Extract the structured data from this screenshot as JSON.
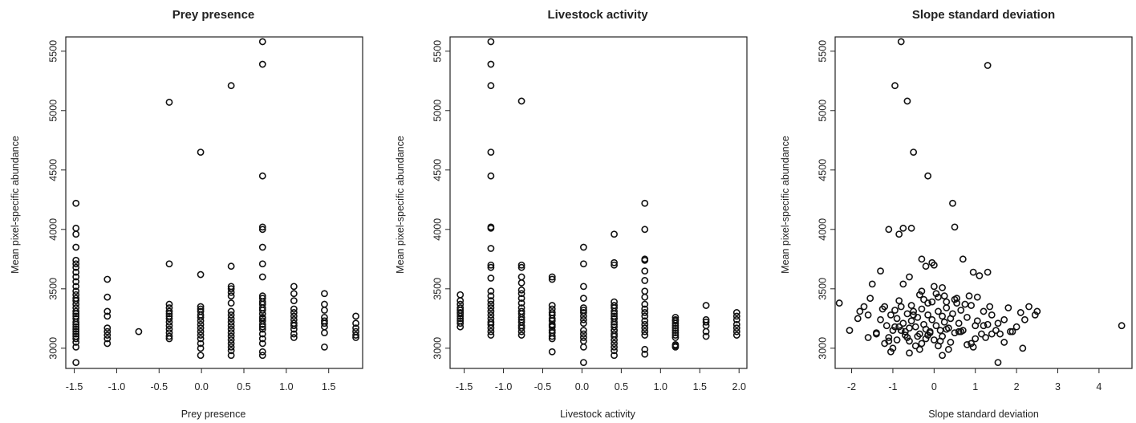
{
  "chart_data": [
    {
      "type": "scatter",
      "title": "Prey presence",
      "xlabel": "Prey presence",
      "ylabel": "Mean pixel-specific abundance",
      "xlim": [
        -1.6,
        1.9
      ],
      "ylim": [
        2830,
        5620
      ],
      "xticks": [
        -1.5,
        -1.0,
        -0.5,
        0.0,
        0.5,
        1.0,
        1.5
      ],
      "xtick_labels": [
        "-1.5",
        "-1.0",
        "-0.5",
        "0.0",
        "0.5",
        "1.0",
        "1.5"
      ],
      "yticks": [
        3000,
        3500,
        4000,
        4500,
        5000,
        5500
      ],
      "ytick_labels": [
        "3000",
        "3500",
        "4000",
        "4500",
        "5000",
        "5500"
      ],
      "grid": false,
      "x": [
        -1.48,
        -1.48,
        -1.48,
        -1.48,
        -1.48,
        -1.48,
        -1.48,
        -1.48,
        -1.48,
        -1.48,
        -1.48,
        -1.48,
        -1.48,
        -1.48,
        -1.48,
        -1.48,
        -1.48,
        -1.48,
        -1.48,
        -1.48,
        -1.48,
        -1.48,
        -1.48,
        -1.48,
        -1.48,
        -1.48,
        -1.48,
        -1.48,
        -1.48,
        -1.48,
        -1.48,
        -1.48,
        -1.11,
        -1.11,
        -1.11,
        -1.11,
        -1.11,
        -1.11,
        -1.11,
        -1.11,
        -1.11,
        -0.74,
        -0.38,
        -0.38,
        -0.38,
        -0.38,
        -0.38,
        -0.38,
        -0.38,
        -0.38,
        -0.38,
        -0.38,
        -0.38,
        -0.38,
        -0.38,
        -0.38,
        -0.01,
        -0.01,
        -0.01,
        -0.01,
        -0.01,
        -0.01,
        -0.01,
        -0.01,
        -0.01,
        -0.01,
        -0.01,
        -0.01,
        -0.01,
        -0.01,
        -0.01,
        -0.01,
        0.35,
        0.35,
        0.35,
        0.35,
        0.35,
        0.35,
        0.35,
        0.35,
        0.35,
        0.35,
        0.35,
        0.35,
        0.35,
        0.35,
        0.35,
        0.35,
        0.35,
        0.35,
        0.35,
        0.35,
        0.72,
        0.72,
        0.72,
        0.72,
        0.72,
        0.72,
        0.72,
        0.72,
        0.72,
        0.72,
        0.72,
        0.72,
        0.72,
        0.72,
        0.72,
        0.72,
        0.72,
        0.72,
        0.72,
        0.72,
        0.72,
        0.72,
        0.72,
        0.72,
        0.72,
        0.72,
        1.09,
        1.09,
        1.09,
        1.09,
        1.09,
        1.09,
        1.09,
        1.09,
        1.09,
        1.09,
        1.09,
        1.09,
        1.45,
        1.45,
        1.45,
        1.45,
        1.45,
        1.45,
        1.45,
        1.45,
        1.45,
        1.82,
        1.82,
        1.82,
        1.82,
        1.82,
        1.82
      ],
      "y": [
        2880,
        3010,
        3050,
        3080,
        3100,
        3120,
        3140,
        3160,
        3180,
        3200,
        3220,
        3250,
        3270,
        3290,
        3310,
        3340,
        3370,
        3400,
        3420,
        3450,
        3480,
        3520,
        3560,
        3600,
        3640,
        3680,
        3710,
        3740,
        3850,
        3960,
        4010,
        4220,
        3040,
        3080,
        3110,
        3140,
        3170,
        3270,
        3310,
        3430,
        3580,
        3140,
        3080,
        3100,
        3130,
        3160,
        3190,
        3220,
        3250,
        3270,
        3290,
        3310,
        3340,
        3370,
        3710,
        5070,
        2940,
        3000,
        3040,
        3080,
        3110,
        3140,
        3170,
        3200,
        3230,
        3260,
        3280,
        3310,
        3330,
        3350,
        3620,
        4650,
        2940,
        2980,
        3010,
        3040,
        3070,
        3100,
        3130,
        3160,
        3190,
        3220,
        3250,
        3280,
        3310,
        3380,
        3440,
        3470,
        3500,
        3520,
        3690,
        5210,
        2940,
        2970,
        3040,
        3080,
        3120,
        3160,
        3200,
        3230,
        3260,
        3290,
        3320,
        3340,
        3370,
        3390,
        3420,
        3440,
        3600,
        3710,
        3850,
        4000,
        4020,
        4450,
        5390,
        5580,
        3180,
        3250,
        3090,
        3120,
        3160,
        3190,
        3210,
        3240,
        3270,
        3300,
        3330,
        3400,
        3460,
        3520,
        3010,
        3130,
        3180,
        3210,
        3230,
        3260,
        3320,
        3370,
        3460,
        3090,
        3110,
        3140,
        3170,
        3210,
        3270
      ]
    },
    {
      "type": "scatter",
      "title": "Livestock activity",
      "xlabel": "Livestock activity",
      "ylabel": "Mean pixel-specific abundance",
      "xlim": [
        -1.68,
        2.1
      ],
      "ylim": [
        2830,
        5620
      ],
      "xticks": [
        -1.5,
        -1.0,
        -0.5,
        0.0,
        0.5,
        1.0,
        1.5,
        2.0
      ],
      "xtick_labels": [
        "-1.5",
        "-1.0",
        "-0.5",
        "0.0",
        "0.5",
        "1.0",
        "1.5",
        "2.0"
      ],
      "yticks": [
        3000,
        3500,
        4000,
        4500,
        5000,
        5500
      ],
      "ytick_labels": [
        "3000",
        "3500",
        "4000",
        "4500",
        "5000",
        "5500"
      ],
      "grid": false,
      "x": [
        -1.55,
        -1.55,
        -1.55,
        -1.55,
        -1.55,
        -1.55,
        -1.55,
        -1.55,
        -1.55,
        -1.55,
        -1.55,
        -1.55,
        -1.16,
        -1.16,
        -1.16,
        -1.16,
        -1.16,
        -1.16,
        -1.16,
        -1.16,
        -1.16,
        -1.16,
        -1.16,
        -1.16,
        -1.16,
        -1.16,
        -1.16,
        -1.16,
        -1.16,
        -1.16,
        -1.16,
        -1.16,
        -1.16,
        -1.16,
        -1.16,
        -1.16,
        -0.77,
        -0.77,
        -0.77,
        -0.77,
        -0.77,
        -0.77,
        -0.77,
        -0.77,
        -0.77,
        -0.77,
        -0.77,
        -0.77,
        -0.77,
        -0.77,
        -0.77,
        -0.77,
        -0.77,
        -0.77,
        -0.77,
        -0.38,
        -0.38,
        -0.38,
        -0.38,
        -0.38,
        -0.38,
        -0.38,
        -0.38,
        -0.38,
        -0.38,
        -0.38,
        -0.38,
        -0.38,
        -0.38,
        -0.38,
        -0.38,
        0.02,
        0.02,
        0.02,
        0.02,
        0.02,
        0.02,
        0.02,
        0.02,
        0.02,
        0.02,
        0.02,
        0.02,
        0.02,
        0.02,
        0.02,
        0.02,
        0.41,
        0.41,
        0.41,
        0.41,
        0.41,
        0.41,
        0.41,
        0.41,
        0.41,
        0.41,
        0.41,
        0.41,
        0.41,
        0.41,
        0.41,
        0.41,
        0.41,
        0.41,
        0.41,
        0.41,
        0.41,
        0.41,
        0.41,
        0.8,
        0.8,
        0.8,
        0.8,
        0.8,
        0.8,
        0.8,
        0.8,
        0.8,
        0.8,
        0.8,
        0.8,
        0.8,
        0.8,
        0.8,
        0.8,
        0.8,
        0.8,
        0.8,
        1.19,
        1.19,
        1.19,
        1.19,
        1.19,
        1.19,
        1.19,
        1.19,
        1.19,
        1.19,
        1.19,
        1.19,
        1.19,
        1.58,
        1.58,
        1.58,
        1.58,
        1.58,
        1.58,
        1.97,
        1.97,
        1.97,
        1.97,
        1.97,
        1.97,
        1.97
      ],
      "y": [
        3180,
        3210,
        3230,
        3250,
        3270,
        3290,
        3300,
        3320,
        3340,
        3370,
        3400,
        3450,
        3110,
        3140,
        3170,
        3200,
        3220,
        3250,
        3280,
        3310,
        3340,
        3370,
        3400,
        3440,
        3480,
        3590,
        3680,
        3700,
        3840,
        4010,
        4020,
        4450,
        4650,
        5210,
        5390,
        5580,
        3110,
        3140,
        3170,
        3190,
        3220,
        3240,
        3260,
        3290,
        3310,
        3340,
        3380,
        3420,
        3460,
        3490,
        3550,
        3600,
        3680,
        3700,
        5080,
        2970,
        3080,
        3100,
        3130,
        3150,
        3180,
        3200,
        3230,
        3250,
        3280,
        3300,
        3330,
        3360,
        3580,
        3600,
        3190,
        2880,
        3010,
        3060,
        3090,
        3120,
        3150,
        3210,
        3240,
        3270,
        3300,
        3340,
        3420,
        3520,
        3710,
        3850,
        3320,
        2940,
        2980,
        3010,
        3040,
        3070,
        3100,
        3120,
        3150,
        3180,
        3200,
        3220,
        3250,
        3270,
        3290,
        3310,
        3340,
        3360,
        3390,
        3700,
        3720,
        3960,
        3250,
        3150,
        2950,
        2990,
        3110,
        3140,
        3170,
        3200,
        3230,
        3270,
        3300,
        3330,
        3370,
        3430,
        3480,
        3570,
        3650,
        3750,
        3740,
        4000,
        4220,
        3010,
        3030,
        3090,
        3110,
        3130,
        3150,
        3170,
        3190,
        3210,
        3230,
        3240,
        3260,
        3020,
        3100,
        3140,
        3190,
        3220,
        3240,
        3360,
        3110,
        3140,
        3170,
        3200,
        3240,
        3270,
        3300
      ]
    },
    {
      "type": "scatter",
      "title": "Slope standard deviation",
      "xlabel": "Slope standard deviation",
      "ylabel": "Mean pixel-specific abundance",
      "xlim": [
        -2.4,
        4.8
      ],
      "ylim": [
        2830,
        5620
      ],
      "xticks": [
        -2,
        -1,
        0,
        1,
        2,
        3,
        4
      ],
      "xtick_labels": [
        "-2",
        "-1",
        "0",
        "1",
        "2",
        "3",
        "4"
      ],
      "yticks": [
        3000,
        3500,
        4000,
        4500,
        5000,
        5500
      ],
      "ytick_labels": [
        "3000",
        "3500",
        "4000",
        "4500",
        "5000",
        "5500"
      ],
      "grid": false,
      "x": [
        -0.8,
        1.3,
        -0.95,
        -0.65,
        -0.5,
        -0.15,
        0.45,
        0.5,
        -0.75,
        -0.55,
        -1.1,
        -0.85,
        -0.3,
        -0.05,
        0.0,
        -0.2,
        0.7,
        0.95,
        1.1,
        1.3,
        -1.3,
        -1.5,
        -2.3,
        -2.05,
        -1.85,
        -1.8,
        -1.7,
        -1.6,
        -1.55,
        -1.4,
        -1.3,
        -1.2,
        -1.15,
        -1.1,
        -1.05,
        -1.0,
        -0.95,
        -0.9,
        -0.85,
        -0.8,
        -0.75,
        -0.7,
        -0.65,
        -0.6,
        -0.55,
        -0.5,
        -0.45,
        -0.4,
        -0.35,
        -0.3,
        -0.25,
        -0.2,
        -0.15,
        -0.1,
        -0.05,
        0.05,
        0.1,
        0.15,
        0.2,
        0.25,
        0.3,
        0.35,
        0.4,
        0.45,
        0.5,
        0.55,
        0.6,
        0.65,
        0.7,
        0.8,
        0.9,
        1.0,
        1.05,
        1.15,
        1.2,
        1.3,
        1.4,
        1.5,
        1.6,
        1.7,
        1.8,
        1.9,
        2.0,
        2.1,
        2.2,
        2.3,
        2.5,
        -1.0,
        -0.9,
        -0.7,
        -0.6,
        -0.4,
        -0.3,
        -0.2,
        -0.1,
        0.0,
        0.1,
        0.2,
        0.3,
        0.4,
        0.6,
        0.8,
        1.0,
        1.2,
        1.4,
        -1.2,
        -0.8,
        -0.5,
        -0.25,
        0.05,
        0.25,
        0.55,
        0.85,
        -1.6,
        -1.4,
        -1.1,
        -0.95,
        -0.65,
        -0.45,
        -0.15,
        0.15,
        0.35,
        0.65,
        0.95,
        1.25,
        1.55,
        1.85,
        2.15,
        2.45,
        -1.25,
        -0.85,
        -0.55,
        -0.35,
        -0.05,
        0.2,
        0.5,
        0.75,
        1.05,
        1.35,
        -0.75,
        -0.3,
        0.0,
        0.3,
        -0.6,
        -0.15,
        0.1,
        4.55,
        1.55,
        -0.6,
        -0.35,
        0.2,
        0.9,
        1.7,
        -1.05
      ],
      "y": [
        5580,
        5380,
        5210,
        5080,
        4650,
        4450,
        4220,
        4020,
        4010,
        4010,
        4000,
        3960,
        3750,
        3720,
        3700,
        3690,
        3750,
        3640,
        3610,
        3640,
        3650,
        3540,
        3380,
        3150,
        3250,
        3310,
        3350,
        3280,
        3420,
        3120,
        3240,
        3350,
        3190,
        3090,
        3280,
        3150,
        3320,
        3250,
        3180,
        3350,
        3210,
        3140,
        3290,
        3170,
        3230,
        3310,
        3180,
        3260,
        3120,
        3330,
        3200,
        3160,
        3280,
        3140,
        3240,
        3190,
        3310,
        3150,
        3270,
        3220,
        3340,
        3170,
        3250,
        3290,
        3130,
        3380,
        3210,
        3320,
        3150,
        3260,
        3360,
        3190,
        3230,
        3120,
        3310,
        3200,
        3280,
        3150,
        3120,
        3240,
        3340,
        3140,
        3180,
        3300,
        3240,
        3350,
        3310,
        3000,
        3070,
        3110,
        3060,
        3100,
        3040,
        3080,
        3130,
        3070,
        3020,
        3100,
        3160,
        3050,
        3140,
        3030,
        3080,
        3190,
        3120,
        3040,
        3150,
        3280,
        3410,
        3460,
        3440,
        3420,
        3440,
        3090,
        3130,
        3060,
        3180,
        3090,
        3020,
        3110,
        3060,
        2990,
        3140,
        3010,
        3090,
        3210,
        3140,
        3000,
        3280,
        3330,
        3400,
        3360,
        3450,
        3390,
        3510,
        3410,
        3370,
        3430,
        3350,
        3540,
        3480,
        3520,
        3390,
        3600,
        3380,
        3430,
        3190,
        2880,
        2960,
        2990,
        2940,
        3040,
        3050,
        2970
      ]
    }
  ]
}
